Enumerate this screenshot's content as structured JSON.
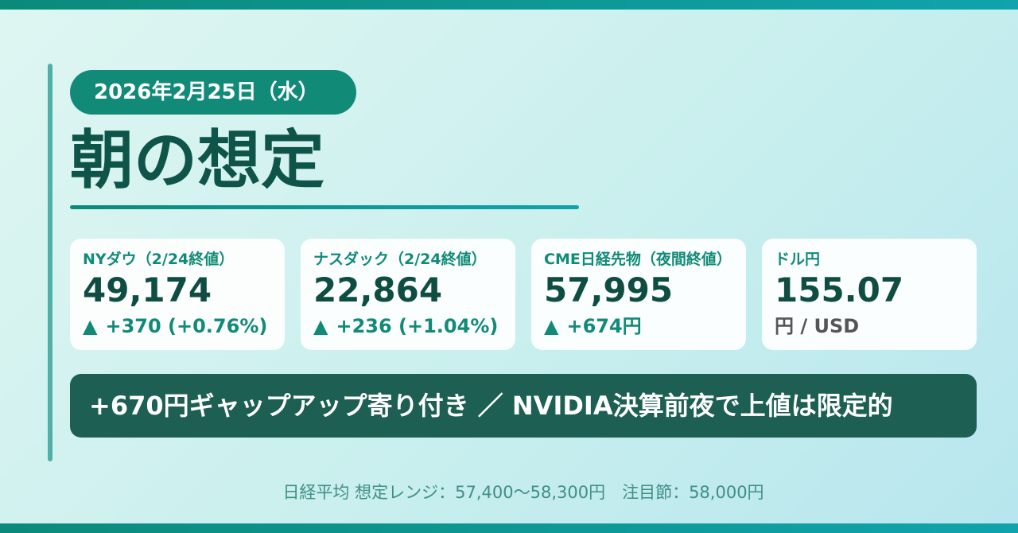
{
  "header": {
    "date": "2026年2月25日（水）",
    "title": "朝の想定"
  },
  "cards": [
    {
      "label": "NYダウ（2/24終値）",
      "value": "49,174",
      "change": "+370 (+0.76%)",
      "direction": "up"
    },
    {
      "label": "ナスダック（2/24終値）",
      "value": "22,864",
      "change": "+236 (+1.04%)",
      "direction": "up"
    },
    {
      "label": "CME日経先物（夜間終値）",
      "value": "57,995",
      "change": "+674円",
      "direction": "up"
    },
    {
      "label": "ドル円",
      "value": "155.07",
      "unit": "円 / USD"
    }
  ],
  "headline": "+670円ギャップアップ寄り付き ／ NVIDIA決算前夜で上値は限定的",
  "footer": "日経平均 想定レンジ：57,400〜58,300円　注目節：58,000円",
  "symbols": {
    "up_arrow": "▲"
  },
  "colors": {
    "primary": "#128a78",
    "dark": "#0f5448",
    "headline_bg": "#1d5f52",
    "up": "#128a78"
  }
}
